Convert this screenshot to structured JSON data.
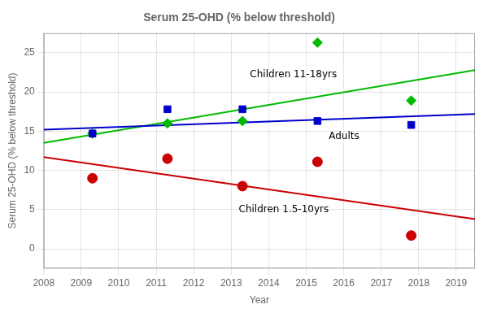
{
  "chart_data": {
    "type": "scatter",
    "title": "Serum 25-OHD (% below threshold)",
    "x_label": "Year",
    "y_label": "Serum 25-OHD (% below threshold)",
    "xlim": [
      2008,
      2019.5
    ],
    "ylim": [
      -2.5,
      27.5
    ],
    "xticks": [
      2008,
      2009,
      2010,
      2011,
      2012,
      2013,
      2014,
      2015,
      2016,
      2017,
      2018,
      2019
    ],
    "yticks": [
      0,
      5,
      10,
      15,
      20,
      25
    ],
    "grid": true,
    "series": [
      {
        "name": "Adults",
        "color": "#0000cc",
        "marker": "square",
        "x": [
          2009.3,
          2011.3,
          2013.3,
          2015.3,
          2017.8
        ],
        "values": [
          14.7,
          17.8,
          17.8,
          16.3,
          15.8
        ],
        "trend_x": [
          2008,
          2019.5
        ],
        "trend_y": [
          15.2,
          17.2
        ]
      },
      {
        "name": "Children 11-18yrs",
        "color": "#00bb00",
        "marker": "diamond",
        "x": [
          2009.3,
          2011.3,
          2013.3,
          2015.3,
          2017.8
        ],
        "values": [
          14.7,
          16.0,
          16.3,
          26.3,
          18.9
        ],
        "trend_x": [
          2008,
          2019.5
        ],
        "trend_y": [
          13.5,
          22.8
        ]
      },
      {
        "name": "Children 1.5-10yrs",
        "color": "#cc0000",
        "marker": "circle",
        "x": [
          2009.3,
          2011.3,
          2013.3,
          2015.3,
          2017.8
        ],
        "values": [
          9.0,
          11.5,
          8.0,
          11.1,
          1.7
        ],
        "trend_x": [
          2008,
          2019.5
        ],
        "trend_y": [
          11.7,
          3.8
        ]
      }
    ],
    "annotations": [
      {
        "text": "Adults",
        "x": 2015.6,
        "y": 14.3
      },
      {
        "text": "Children 11-18yrs",
        "x": 2013.5,
        "y": 22.2
      },
      {
        "text": "Children 1.5-10yrs",
        "x": 2013.2,
        "y": 5.0
      }
    ]
  }
}
